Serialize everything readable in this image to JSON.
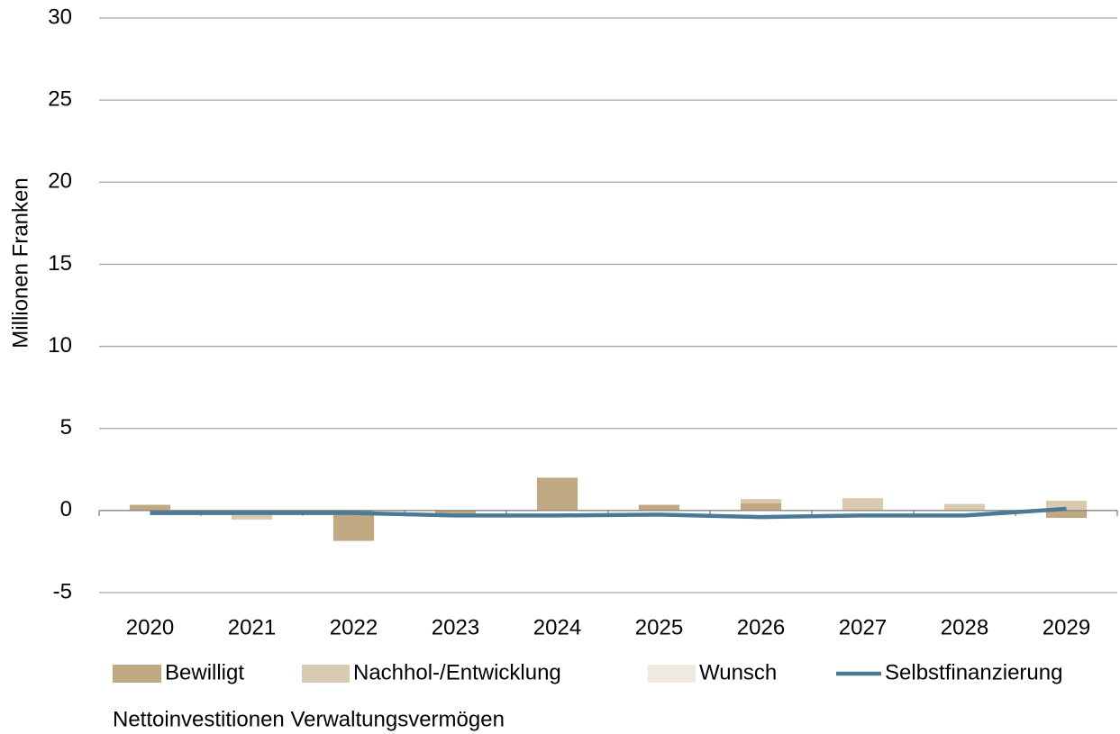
{
  "chart_data": {
    "type": "bar",
    "y_label": "Millionen Franken",
    "caption": "Nettoinvestitionen Verwaltungsvermögen",
    "categories": [
      "2020",
      "2021",
      "2022",
      "2023",
      "2024",
      "2025",
      "2026",
      "2027",
      "2028",
      "2029"
    ],
    "series": [
      {
        "name": "Bewilligt",
        "color": "#c0a882",
        "values": [
          0.35,
          0,
          -1.85,
          -0.25,
          2.0,
          0.35,
          0.45,
          0,
          0,
          -0.45
        ]
      },
      {
        "name": "Nachhol-/Entwicklung",
        "color": "#d9c9b1",
        "values": [
          0,
          -0.55,
          0,
          0,
          0,
          0,
          0.25,
          0.75,
          0.4,
          0.6
        ]
      },
      {
        "name": "Wunsch",
        "color": "#efe9e1",
        "values": [
          0,
          0,
          0,
          0,
          0,
          0,
          0,
          0,
          0,
          0
        ]
      },
      {
        "name": "Selbstfinanzierung",
        "type": "line",
        "color": "#4a7a96",
        "values": [
          -0.15,
          -0.15,
          -0.15,
          -0.3,
          -0.3,
          -0.25,
          -0.4,
          -0.3,
          -0.3,
          0.1
        ]
      }
    ],
    "ylim": [
      -5,
      30
    ],
    "yticks": [
      -5,
      0,
      5,
      10,
      15,
      20,
      25,
      30
    ],
    "grid": true,
    "legend": "bottom"
  }
}
